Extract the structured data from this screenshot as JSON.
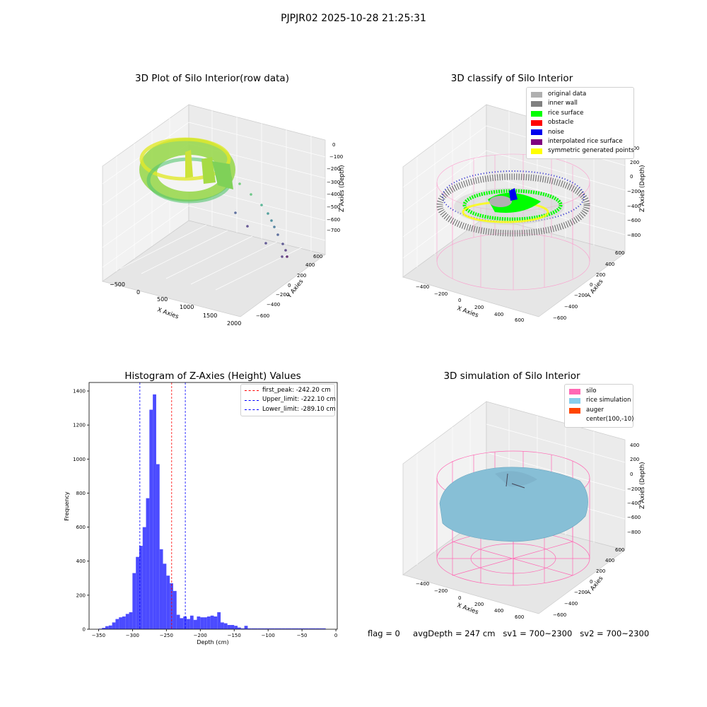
{
  "suptitle": "PJPJR02 2025-10-28 21:25:31",
  "panels": {
    "raw": {
      "title": "3D Plot of Silo Interior(row data)",
      "xlabel": "X Axies",
      "ylabel": "Y Axies",
      "zlabel": "Z Axies (Depth)",
      "xticks": [
        "−500",
        "0",
        "500",
        "1000",
        "1500",
        "2000"
      ],
      "yticks": [
        "600",
        "400",
        "200",
        "0",
        "−200",
        "−400",
        "−600"
      ],
      "zticks": [
        "0",
        "−100",
        "−200",
        "−300",
        "−400",
        "−500",
        "−600",
        "−700"
      ]
    },
    "classify": {
      "title": "3D classify of Silo Interior",
      "xlabel": "X Axies",
      "ylabel": "Y Axies",
      "zlabel": "Z Axies (Depth)",
      "xticks": [
        "−400",
        "−200",
        "0",
        "200",
        "400",
        "600"
      ],
      "yticks": [
        "600",
        "400",
        "200",
        "0",
        "−200",
        "−400",
        "−600"
      ],
      "zticks": [
        "200",
        "0",
        "−200",
        "−400",
        "−600",
        "−800"
      ],
      "legend": [
        {
          "label": "original data",
          "color": "#b0b0b0"
        },
        {
          "label": "inner wall",
          "color": "#808080"
        },
        {
          "label": "rice surface",
          "color": "#00ff00"
        },
        {
          "label": "obstacle",
          "color": "#ff0000"
        },
        {
          "label": "noise",
          "color": "#0000ee"
        },
        {
          "label": "interpolated rice surface",
          "color": "#800080"
        },
        {
          "label": "symmetric generated points",
          "color": "#ffff00"
        }
      ]
    },
    "simulation": {
      "title": "3D simulation of Silo Interior",
      "xlabel": "X Axies",
      "ylabel": "Y Axies",
      "zlabel": "Z Axies (Depth)",
      "xticks": [
        "−400",
        "−200",
        "0",
        "200",
        "400",
        "600"
      ],
      "yticks": [
        "600",
        "400",
        "200",
        "0",
        "−200",
        "−400",
        "−600"
      ],
      "zticks": [
        "400",
        "200",
        "0",
        "−200",
        "−400",
        "−600",
        "−800"
      ],
      "legend": [
        {
          "label": "silo",
          "color": "#ff69b4"
        },
        {
          "label": "rice simulation",
          "color": "#87ceeb"
        },
        {
          "label": "auger",
          "color": "#ff4500"
        },
        {
          "label": "center(100,-10)",
          "color": ""
        }
      ]
    }
  },
  "footer": {
    "flag": "flag = 0",
    "avg": "avgDepth = 247 cm",
    "sv1": "sv1 = 700~2300",
    "sv2": "sv2 = 700~2300"
  },
  "chart_data": {
    "type": "bar",
    "title": "Histogram of Z-Axies (Height) Values",
    "xlabel": "Depth (cm)",
    "ylabel": "Frequency",
    "xlim": [
      -364,
      2
    ],
    "ylim": [
      0,
      1450
    ],
    "xticks": [
      -350,
      -300,
      -250,
      -200,
      -150,
      -100,
      -50,
      0
    ],
    "yticks": [
      0,
      200,
      400,
      600,
      800,
      1000,
      1200,
      1400
    ],
    "tick_labels_x": [
      "−350",
      "−300",
      "−250",
      "−200",
      "−150",
      "−100",
      "−50",
      "0"
    ],
    "tick_labels_y": [
      "0",
      "200",
      "400",
      "600",
      "800",
      "1000",
      "1200",
      "1400"
    ],
    "bin_edges": [
      -350,
      -345,
      -340,
      -335,
      -330,
      -325,
      -320,
      -315,
      -310,
      -305,
      -300,
      -295,
      -290,
      -285,
      -280,
      -275,
      -270,
      -265,
      -260,
      -255,
      -250,
      -245,
      -240,
      -235,
      -230,
      -225,
      -220,
      -215,
      -210,
      -205,
      -200,
      -195,
      -190,
      -185,
      -180,
      -175,
      -170,
      -165,
      -160,
      -155,
      -150,
      -145,
      -140,
      -135,
      -130,
      -125,
      -120,
      -115,
      -110,
      -105,
      -100,
      -95,
      -90,
      -85,
      -80,
      -75,
      -70,
      -65,
      -60,
      -55,
      -50,
      -45,
      -40,
      -35,
      -30,
      -25,
      -20,
      -15
    ],
    "values": [
      3,
      8,
      18,
      22,
      40,
      60,
      70,
      75,
      90,
      100,
      330,
      425,
      490,
      600,
      770,
      1290,
      1380,
      970,
      470,
      385,
      315,
      270,
      225,
      85,
      65,
      75,
      60,
      80,
      55,
      75,
      70,
      70,
      75,
      80,
      75,
      100,
      40,
      35,
      25,
      25,
      20,
      10,
      5,
      20,
      5,
      5,
      5,
      5,
      5,
      5,
      5,
      5,
      5,
      5,
      5,
      5,
      5,
      5,
      5,
      5,
      5,
      5,
      5,
      5,
      5,
      5,
      5
    ],
    "color": "#4b4bff",
    "vlines": [
      {
        "x": -242.2,
        "color": "#ff0000",
        "label": "first_peak: -242.20 cm"
      },
      {
        "x": -222.1,
        "color": "#0000ff",
        "label": "Upper_limit: -222.10 cm"
      },
      {
        "x": -289.1,
        "color": "#0000ff",
        "label": "Lower_limit: -289.10 cm"
      }
    ],
    "legend_position": "upper right"
  }
}
